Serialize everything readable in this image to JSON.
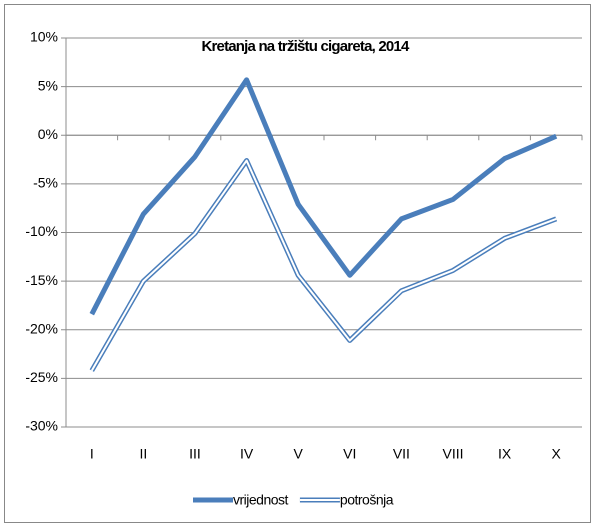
{
  "chart_data": {
    "type": "line",
    "title": "Kretanja na tržištu cigareta, 2014",
    "categories": [
      "I",
      "II",
      "III",
      "IV",
      "V",
      "VI",
      "VII",
      "VIII",
      "IX",
      "X"
    ],
    "series": [
      {
        "name": "vrijednost",
        "color": "#4a7ebb",
        "line_style": "solid",
        "values": [
          -18.4,
          -8.1,
          -2.2,
          5.7,
          -7.1,
          -14.4,
          -8.6,
          -6.6,
          -2.4,
          -0.1
        ]
      },
      {
        "name": "potrošnja",
        "color": "#4a7ebb",
        "line_style": "double",
        "values": [
          -24.2,
          -15.0,
          -10.1,
          -2.6,
          -14.4,
          -21.1,
          -16.0,
          -13.9,
          -10.6,
          -8.6
        ]
      }
    ],
    "ylim": [
      -30,
      10
    ],
    "yticks": [
      {
        "value": -30,
        "label": "-30%"
      },
      {
        "value": -25,
        "label": "-25%"
      },
      {
        "value": -20,
        "label": "-20%"
      },
      {
        "value": -15,
        "label": "-15%"
      },
      {
        "value": -10,
        "label": "-10%"
      },
      {
        "value": -5,
        "label": "-5%"
      },
      {
        "value": 0,
        "label": "0%"
      },
      {
        "value": 5,
        "label": "5%"
      },
      {
        "value": 10,
        "label": "10%"
      }
    ],
    "grid": true,
    "legend": "bottom"
  }
}
